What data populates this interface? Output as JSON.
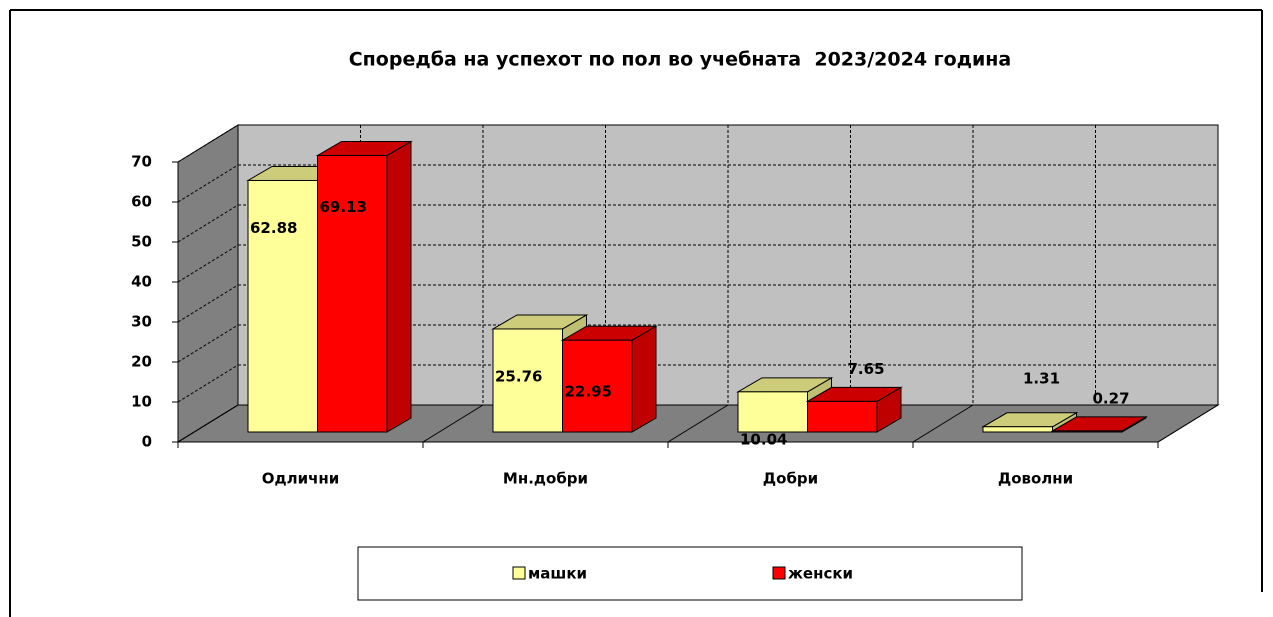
{
  "chart_data": {
    "type": "bar3d",
    "title": "Споредба на успехот по пол во учебната  2023/2024 година",
    "categories": [
      "Одлични",
      "Мн.добри",
      "Добри",
      "Доволни"
    ],
    "series": [
      {
        "name": "машки",
        "color": "#ffff99",
        "values": [
          62.88,
          25.76,
          10.04,
          1.31
        ]
      },
      {
        "name": "женски",
        "color": "#ff0000",
        "values": [
          69.13,
          22.95,
          7.65,
          0.27
        ]
      }
    ],
    "ylim": [
      0,
      70
    ],
    "yticks": [
      0,
      10,
      20,
      30,
      40,
      50,
      60,
      70
    ],
    "grid": true
  }
}
